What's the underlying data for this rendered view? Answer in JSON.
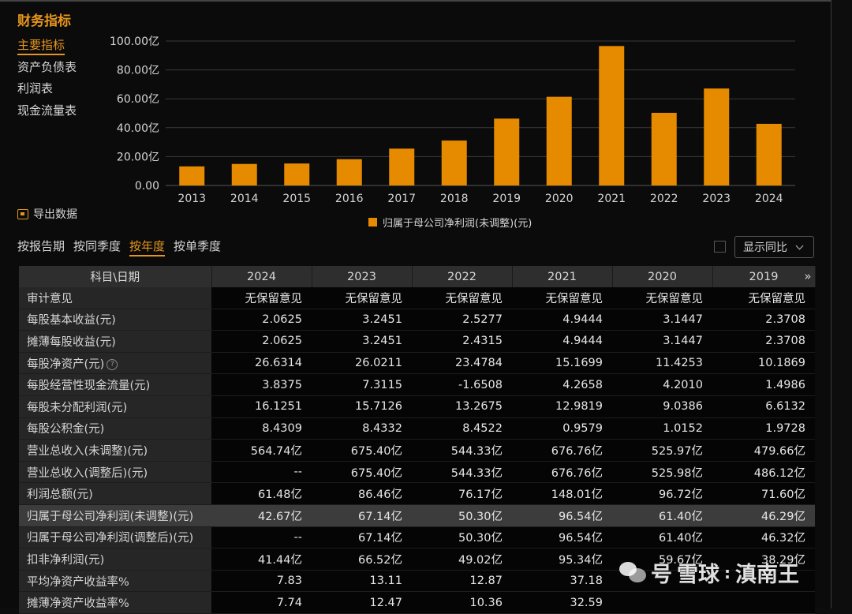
{
  "panel_title": "财务指标",
  "nav": [
    "主要指标",
    "资产负债表",
    "利润表",
    "现金流量表"
  ],
  "export_label": "导出数据",
  "legend_label": "归属于母公司净利润(未调整)(元)",
  "colors": {
    "accent": "#e6951c",
    "bar": "#e68a00"
  },
  "period_tabs": [
    "按报告期",
    "按同季度",
    "按年度",
    "按单季度"
  ],
  "yoy_select": "显示同比",
  "chart_data": {
    "type": "bar",
    "categories": [
      "2013",
      "2014",
      "2015",
      "2016",
      "2017",
      "2018",
      "2019",
      "2020",
      "2021",
      "2022",
      "2023",
      "2024"
    ],
    "series": [
      {
        "name": "归属于母公司净利润(未调整)(元)",
        "values": [
          13.2,
          14.9,
          15.2,
          18.2,
          25.5,
          31.1,
          46.29,
          61.4,
          96.54,
          50.3,
          67.14,
          42.67
        ]
      }
    ],
    "ylim": [
      0,
      100
    ],
    "yticks": [
      "0.00",
      "20.00亿",
      "40.00亿",
      "60.00亿",
      "80.00亿",
      "100.00亿"
    ],
    "grid": true,
    "legend": "bottom"
  },
  "table": {
    "header_label": "科目\\日期",
    "years": [
      "2024",
      "2023",
      "2022",
      "2021",
      "2020",
      "2019"
    ],
    "rows": [
      {
        "label": "审计意见",
        "values": [
          "无保留意见",
          "无保留意见",
          "无保留意见",
          "无保留意见",
          "无保留意见",
          "无保留意见"
        ]
      },
      {
        "label": "每股基本收益(元)",
        "values": [
          "2.0625",
          "3.2451",
          "2.5277",
          "4.9444",
          "3.1447",
          "2.3708"
        ]
      },
      {
        "label": "摊薄每股收益(元)",
        "values": [
          "2.0625",
          "3.2451",
          "2.4315",
          "4.9444",
          "3.1447",
          "2.3708"
        ]
      },
      {
        "label": "每股净资产(元)",
        "values": [
          "26.6314",
          "26.0211",
          "23.4784",
          "15.1699",
          "11.4253",
          "10.1869"
        ]
      },
      {
        "label": "每股经营性现金流量(元)",
        "values": [
          "3.8375",
          "7.3115",
          "-1.6508",
          "4.2658",
          "4.2010",
          "1.4986"
        ]
      },
      {
        "label": "每股未分配利润(元)",
        "values": [
          "16.1251",
          "15.7126",
          "13.2675",
          "12.9819",
          "9.0386",
          "6.6132"
        ]
      },
      {
        "label": "每股公积金(元)",
        "values": [
          "8.4309",
          "8.4332",
          "8.4522",
          "0.9579",
          "1.0152",
          "1.9728"
        ]
      },
      {
        "label": "营业总收入(未调整)(元)",
        "values": [
          "564.74亿",
          "675.40亿",
          "544.33亿",
          "676.76亿",
          "525.97亿",
          "479.66亿"
        ]
      },
      {
        "label": "营业总收入(调整后)(元)",
        "values": [
          "--",
          "675.40亿",
          "544.33亿",
          "676.76亿",
          "525.98亿",
          "486.12亿"
        ]
      },
      {
        "label": "利润总额(元)",
        "values": [
          "61.48亿",
          "86.46亿",
          "76.17亿",
          "148.01亿",
          "96.72亿",
          "71.60亿"
        ]
      },
      {
        "label": "归属于母公司净利润(未调整)(元)",
        "values": [
          "42.67亿",
          "67.14亿",
          "50.30亿",
          "96.54亿",
          "61.40亿",
          "46.29亿"
        ]
      },
      {
        "label": "归属于母公司净利润(调整后)(元)",
        "values": [
          "--",
          "67.14亿",
          "50.30亿",
          "96.54亿",
          "61.40亿",
          "46.32亿"
        ]
      },
      {
        "label": "扣非净利润(元)",
        "values": [
          "41.44亿",
          "66.52亿",
          "49.02亿",
          "95.34亿",
          "59.67亿",
          "38.29亿"
        ]
      },
      {
        "label": "平均净资产收益率%",
        "values": [
          "7.83",
          "13.11",
          "12.87",
          "37.18",
          "",
          ""
        ]
      },
      {
        "label": "摊薄净资产收益率%",
        "values": [
          "7.74",
          "12.47",
          "10.36",
          "32.59",
          "",
          ""
        ]
      }
    ],
    "highlight_row": 10,
    "more_icon": "»"
  },
  "watermark": {
    "prefix": "号",
    "brand": "雪球",
    "sep": ":",
    "author": "滇南王"
  }
}
